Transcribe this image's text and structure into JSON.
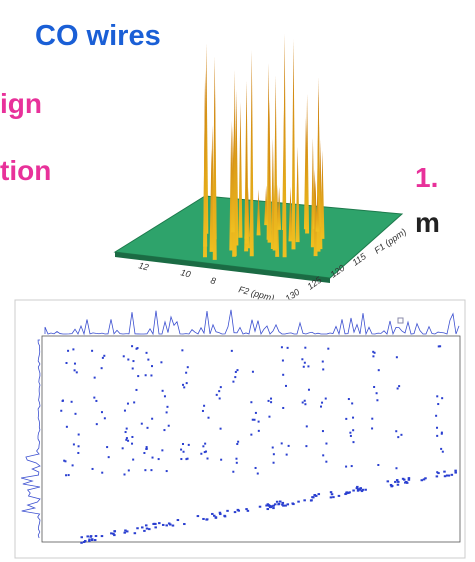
{
  "slide": {
    "title_fragment": "CO wires",
    "left_lines": [
      "ign",
      "tion"
    ],
    "right_lines": [
      "1.",
      "m"
    ]
  },
  "plot3d": {
    "f2_ticks": [
      "12",
      "10",
      "8"
    ],
    "f2_label": "F2 (ppm)",
    "f1_ticks": [
      "130",
      "125",
      "120",
      "115"
    ],
    "f1_label": "F1 (ppm)"
  }
}
